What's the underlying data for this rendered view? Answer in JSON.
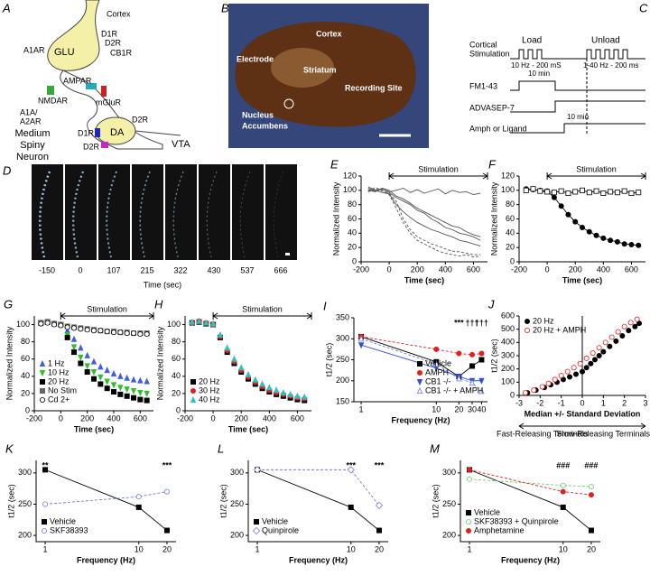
{
  "panels": {
    "A": {
      "label": "A",
      "cortex": "Cortex",
      "a1ar": "A1AR",
      "glu": "GLU",
      "d1r_top": "D1R",
      "d2r_top": "D2R",
      "cb1r": "CB1R",
      "ampar": "AMPAR",
      "mglur": "mGluR",
      "nmdar": "NMDAR",
      "a1a_a2ar": [
        "A1A/",
        "A2AR"
      ],
      "d1r_bottom": "D1R",
      "d2r_right": "D2R",
      "da": "DA",
      "d2r_bottom": "D2R",
      "vta": "VTA",
      "msn": [
        "Medium",
        "Spiny",
        "Neuron"
      ]
    },
    "B": {
      "label": "B",
      "cortex": "Cortex",
      "electrode": "Electrode",
      "striatum": "Striatum",
      "recording_site": "Recording Site",
      "nucleus_accumbens": [
        "Nucleus",
        "Accumbens"
      ]
    },
    "C": {
      "label": "C",
      "stimulation": [
        "Cortical",
        "Stimulation"
      ],
      "load": "Load",
      "unload": "Unload",
      "load_freq": "10 Hz - 200 mS",
      "unload_freq": "1-40 Hz - 200 ms",
      "load_time": "10 min",
      "fm": "FM1-43",
      "advasep": "ADVASEP-7",
      "ligand": "Amph or Ligand",
      "ligand_time": "10 min"
    },
    "D": {
      "label": "D",
      "time_labels": [
        "-150",
        "0",
        "107",
        "215",
        "322",
        "430",
        "537",
        "666"
      ],
      "xlabel": "Time (sec)"
    }
  },
  "chart_data": [
    {
      "type": "line",
      "label": "E",
      "xlabel": "Time (sec)",
      "ylabel": "Normalized Intensity",
      "xlim": [
        -200,
        700
      ],
      "xticks": [
        -200,
        0,
        200,
        400,
        600
      ],
      "ylim": [
        0,
        120
      ],
      "yticks": [
        0,
        20,
        40,
        60,
        80,
        100,
        120
      ],
      "stimulation": {
        "text": "Stimulation",
        "start": 0
      },
      "x": [
        -150,
        -100,
        -50,
        0,
        50,
        100,
        150,
        200,
        250,
        300,
        350,
        400,
        450,
        500,
        550,
        600,
        650
      ],
      "series": [
        {
          "color": "#555555",
          "marker": "none",
          "line": true,
          "values": [
            105,
            100,
            102,
            98,
            100,
            103,
            97,
            101,
            96,
            99,
            102,
            95,
            100,
            97,
            98,
            94,
            96
          ]
        },
        {
          "color": "#555555",
          "marker": "none",
          "line": true,
          "values": [
            100,
            98,
            102,
            97,
            90,
            85,
            80,
            72,
            68,
            60,
            55,
            48,
            45,
            40,
            38,
            35,
            30
          ]
        },
        {
          "color": "#555555",
          "marker": "none",
          "line": true,
          "values": [
            103,
            100,
            97,
            95,
            80,
            70,
            62,
            55,
            50,
            45,
            42,
            38,
            35,
            30,
            28,
            25,
            22
          ]
        },
        {
          "color": "#555555",
          "marker": "none",
          "line": true,
          "dash": true,
          "values": [
            98,
            102,
            99,
            96,
            85,
            60,
            45,
            35,
            30,
            25,
            22,
            18,
            15,
            14,
            12,
            10,
            10
          ]
        },
        {
          "color": "#555555",
          "marker": "none",
          "line": true,
          "values": [
            101,
            99,
            103,
            100,
            92,
            88,
            82,
            75,
            70,
            65,
            60,
            55,
            50,
            48,
            42,
            38,
            35
          ]
        },
        {
          "color": "#555555",
          "marker": "none",
          "line": true,
          "dash": true,
          "values": [
            99,
            104,
            100,
            94,
            75,
            55,
            40,
            30,
            25,
            20,
            15,
            12,
            10,
            8,
            10,
            7,
            8
          ]
        }
      ]
    },
    {
      "type": "line",
      "label": "F",
      "xlabel": "Time (sec)",
      "ylabel": "Normalized Intensity",
      "xlim": [
        -200,
        700
      ],
      "xticks": [
        -200,
        0,
        200,
        400,
        600
      ],
      "ylim": [
        0,
        120
      ],
      "yticks": [
        0,
        20,
        40,
        60,
        80,
        100,
        120
      ],
      "stimulation": {
        "text": "Stimulation",
        "start": 0
      },
      "x": [
        -150,
        -100,
        -50,
        0,
        50,
        100,
        150,
        200,
        250,
        300,
        350,
        400,
        450,
        500,
        550,
        600,
        650
      ],
      "series": [
        {
          "color": "#000000",
          "marker": "circle",
          "filled": true,
          "line": true,
          "values": [
            102,
            101,
            100,
            99,
            90,
            78,
            66,
            56,
            48,
            42,
            37,
            33,
            30,
            28,
            25,
            24,
            23
          ]
        },
        {
          "color": "#000000",
          "marker": "square",
          "filled": false,
          "line": true,
          "values": [
            100,
            102,
            99,
            98,
            97,
            99,
            96,
            98,
            100,
            97,
            99,
            96,
            98,
            97,
            99,
            96,
            97
          ]
        }
      ]
    },
    {
      "type": "scatter",
      "label": "G",
      "xlabel": "Time (sec)",
      "ylabel": "Normalized Intensity",
      "legend": "lower left",
      "xlim": [
        -200,
        700
      ],
      "xticks": [
        -200,
        0,
        200,
        400,
        600
      ],
      "ylim": [
        0,
        110
      ],
      "yticks": [
        0,
        20,
        40,
        60,
        80,
        100
      ],
      "stimulation": {
        "text": "Stimulation",
        "start": 0
      },
      "x": [
        -150,
        -100,
        -50,
        0,
        50,
        100,
        150,
        200,
        250,
        300,
        350,
        400,
        450,
        500,
        550,
        600,
        650
      ],
      "series": [
        {
          "name": "1 Hz",
          "color": "#3f5fe0",
          "marker": "triangle",
          "filled": true,
          "values": [
            102,
            103,
            101,
            100,
            93,
            83,
            73,
            64,
            57,
            51,
            47,
            43,
            40,
            38,
            36,
            35,
            34
          ]
        },
        {
          "name": "10 Hz",
          "color": "#2fbf2f",
          "marker": "triangle-down",
          "filled": true,
          "values": [
            102,
            103,
            101,
            100,
            88,
            74,
            62,
            52,
            45,
            39,
            34,
            30,
            27,
            25,
            23,
            21,
            20
          ]
        },
        {
          "name": "20 Hz",
          "color": "#000000",
          "marker": "square",
          "filled": true,
          "values": [
            102,
            103,
            101,
            100,
            85,
            68,
            55,
            45,
            37,
            31,
            26,
            22,
            19,
            17,
            15,
            13,
            12
          ]
        },
        {
          "name": "No Stim",
          "color": "#666666",
          "marker": "square",
          "filled": true,
          "values": [
            102,
            103,
            101,
            100,
            98,
            97,
            96,
            95,
            94,
            93,
            92,
            92,
            91,
            91,
            90,
            90,
            90
          ]
        },
        {
          "name": "Cd 2+",
          "color": "#000000",
          "marker": "circle",
          "filled": false,
          "values": [
            101,
            102,
            100,
            99,
            97,
            96,
            95,
            94,
            93,
            93,
            92,
            91,
            91,
            90,
            90,
            89,
            89
          ]
        }
      ]
    },
    {
      "type": "scatter",
      "label": "H",
      "xlabel": "Time (sec)",
      "ylabel": "Normalized Intensity",
      "legend": "lower left",
      "xlim": [
        -200,
        700
      ],
      "xticks": [
        -200,
        0,
        200,
        400,
        600
      ],
      "ylim": [
        0,
        110
      ],
      "yticks": [
        0,
        20,
        40,
        60,
        80,
        100
      ],
      "stimulation": {
        "text": "Stimulation",
        "start": 0
      },
      "x": [
        -150,
        -100,
        -50,
        0,
        50,
        100,
        150,
        200,
        250,
        300,
        350,
        400,
        450,
        500,
        550,
        600,
        650
      ],
      "series": [
        {
          "name": "20 Hz",
          "color": "#000000",
          "marker": "square",
          "filled": true,
          "values": [
            102,
            103,
            101,
            100,
            85,
            68,
            55,
            45,
            37,
            31,
            26,
            22,
            19,
            17,
            15,
            13,
            12
          ]
        },
        {
          "name": "30 Hz",
          "color": "#e02020",
          "marker": "circle",
          "filled": true,
          "values": [
            102,
            104,
            102,
            100,
            86,
            70,
            57,
            47,
            39,
            33,
            28,
            24,
            21,
            19,
            17,
            15,
            14
          ]
        },
        {
          "name": "40 Hz",
          "color": "#2fc0c0",
          "marker": "triangle",
          "filled": true,
          "values": [
            103,
            104,
            102,
            101,
            88,
            73,
            60,
            50,
            42,
            36,
            31,
            27,
            24,
            21,
            19,
            17,
            16
          ]
        }
      ]
    },
    {
      "type": "line",
      "label": "I",
      "xlabel": "Frequency (Hz)",
      "ylabel": "t1/2 (sec)",
      "legend": "lower right",
      "xscale": "log",
      "xlim": [
        0.8,
        48
      ],
      "xticks": [
        1,
        10,
        20,
        30,
        40
      ],
      "ylim": [
        150,
        350
      ],
      "yticks": [
        150,
        200,
        250,
        300,
        350
      ],
      "marks": [
        {
          "text": "***",
          "x": 20
        },
        {
          "text": "†††",
          "x": 30
        },
        {
          "text": "†††",
          "x": 40
        }
      ],
      "x": [
        1,
        10,
        20,
        30,
        40
      ],
      "series": [
        {
          "name": "Vehicle",
          "color": "#000000",
          "marker": "square",
          "filled": true,
          "line": true,
          "values": [
            305,
            245,
            210,
            235,
            250
          ]
        },
        {
          "name": "AMPH",
          "color": "#e02020",
          "marker": "circle",
          "filled": true,
          "line": true,
          "dash": true,
          "values": [
            305,
            275,
            265,
            262,
            265
          ]
        },
        {
          "name": "CB1 -/-",
          "color": "#3050d0",
          "marker": "triangle-down",
          "filled": true,
          "line": true,
          "values": [
            285,
            230,
            210,
            200,
            200
          ]
        },
        {
          "name": "CB1 -/- + AMPH",
          "color": "#7080e0",
          "marker": "triangle",
          "filled": false,
          "line": true,
          "dash": true,
          "values": [
            300,
            240,
            205,
            195,
            175
          ]
        }
      ]
    },
    {
      "type": "scatter",
      "label": "J",
      "xlabel": "Median +/- Standard Deviation",
      "ylabel": "t1/2 (sec)",
      "legend": "upper left",
      "xlim": [
        -3,
        3
      ],
      "xticks": [
        -3,
        -2,
        -1,
        0,
        1,
        2,
        3
      ],
      "ylim": [
        0,
        600
      ],
      "yticks": [
        0,
        100,
        200,
        300,
        400,
        500,
        600
      ],
      "below": [
        "Fast-Releasing Terminals",
        "Slow-Releasing Terminals"
      ],
      "series": [
        {
          "name": "20 Hz",
          "color": "#000000",
          "marker": "circle",
          "filled": true,
          "x": [
            -2.6,
            -2.2,
            -1.8,
            -1.5,
            -1.2,
            -0.9,
            -0.6,
            -0.3,
            0,
            0.2,
            0.4,
            0.6,
            0.8,
            1.0,
            1.3,
            1.6,
            1.9,
            2.2,
            2.5,
            2.7
          ],
          "values": [
            20,
            40,
            60,
            80,
            100,
            120,
            140,
            160,
            180,
            210,
            240,
            270,
            300,
            330,
            370,
            410,
            450,
            490,
            520,
            545
          ]
        },
        {
          "name": "20 Hz + AMPH",
          "color": "#e02020",
          "marker": "circle",
          "filled": false,
          "x": [
            -2.7,
            -2.3,
            -1.9,
            -1.6,
            -1.3,
            -1.0,
            -0.7,
            -0.4,
            -0.1,
            0.2,
            0.5,
            0.8,
            1.1,
            1.4,
            1.7,
            2.0,
            2.3,
            2.6
          ],
          "values": [
            20,
            40,
            65,
            90,
            120,
            150,
            180,
            210,
            240,
            280,
            320,
            360,
            400,
            440,
            480,
            520,
            550,
            575
          ]
        }
      ]
    },
    {
      "type": "line",
      "label": "K",
      "xlabel": "Frequency (Hz)",
      "ylabel": "t1/2 (sec)",
      "legend": "lower left",
      "xscale": "log",
      "xlim": [
        0.8,
        25
      ],
      "xticks": [
        1,
        10,
        20
      ],
      "ylim": [
        190,
        320
      ],
      "yticks": [
        200,
        250,
        300
      ],
      "marks": [
        {
          "text": "**",
          "x": 1
        },
        {
          "text": "***",
          "x": 20
        }
      ],
      "x": [
        1,
        10,
        20
      ],
      "series": [
        {
          "name": "Vehicle",
          "color": "#000000",
          "marker": "square",
          "filled": true,
          "line": true,
          "values": [
            305,
            245,
            208
          ]
        },
        {
          "name": "SKF38393",
          "color": "#6a7fd8",
          "marker": "circle",
          "filled": false,
          "line": true,
          "dash": true,
          "values": [
            250,
            262,
            270
          ]
        }
      ]
    },
    {
      "type": "line",
      "label": "L",
      "xlabel": "Frequency (Hz)",
      "ylabel": "t1/2 (sec)",
      "legend": "lower left",
      "xscale": "log",
      "xlim": [
        0.8,
        25
      ],
      "xticks": [
        1,
        10,
        20
      ],
      "ylim": [
        190,
        320
      ],
      "yticks": [
        200,
        250,
        300
      ],
      "marks": [
        {
          "text": "***",
          "x": 10
        },
        {
          "text": "***",
          "x": 20
        }
      ],
      "x": [
        1,
        10,
        20
      ],
      "series": [
        {
          "name": "Vehicle",
          "color": "#000000",
          "marker": "square",
          "filled": true,
          "line": true,
          "values": [
            305,
            245,
            208
          ]
        },
        {
          "name": "Quinpirole",
          "color": "#8a6fd8",
          "marker": "diamond",
          "filled": false,
          "line": true,
          "dash": true,
          "values": [
            305,
            305,
            248
          ]
        }
      ]
    },
    {
      "type": "line",
      "label": "M",
      "xlabel": "Frequency (Hz)",
      "ylabel": "t1/2 (sec)",
      "legend": "lower left",
      "xscale": "log",
      "xlim": [
        0.8,
        25
      ],
      "xticks": [
        1,
        10,
        20
      ],
      "ylim": [
        190,
        320
      ],
      "yticks": [
        200,
        250,
        300
      ],
      "marks": [
        {
          "text": "###",
          "x": 10
        },
        {
          "text": "###",
          "x": 20
        }
      ],
      "x": [
        1,
        10,
        20
      ],
      "series": [
        {
          "name": "Vehicle",
          "color": "#000000",
          "marker": "square",
          "filled": true,
          "line": true,
          "values": [
            305,
            245,
            208
          ]
        },
        {
          "name": "SKF38393 + Quinpirole",
          "color": "#6fcf6f",
          "marker": "circle",
          "filled": false,
          "line": true,
          "dash": true,
          "values": [
            290,
            280,
            278
          ]
        },
        {
          "name": "Amphetamine",
          "color": "#e02020",
          "marker": "circle",
          "filled": true,
          "line": true,
          "dash": true,
          "values": [
            305,
            270,
            265
          ]
        }
      ]
    }
  ]
}
